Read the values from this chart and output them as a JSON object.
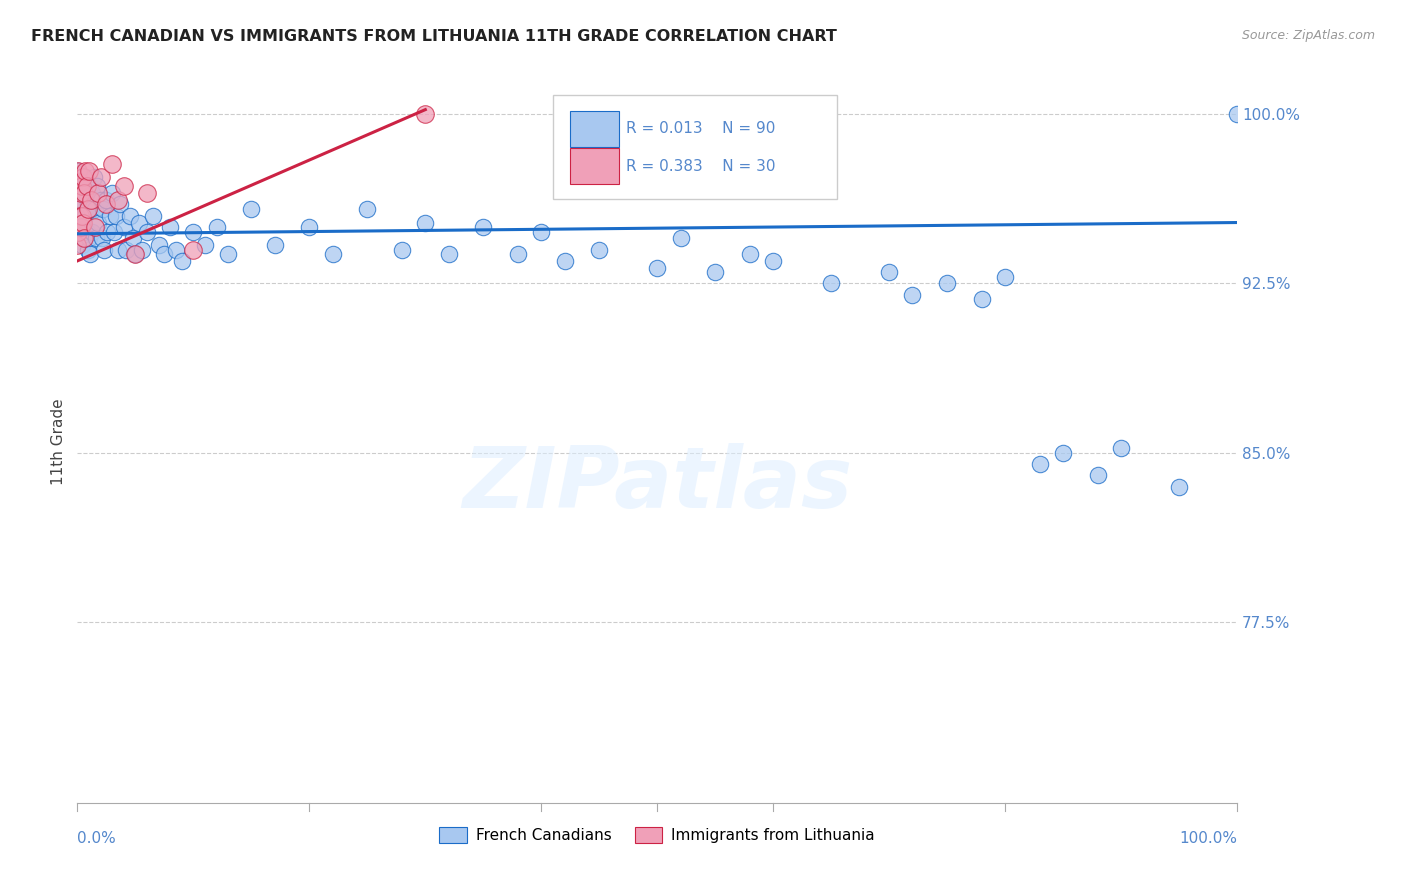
{
  "title": "FRENCH CANADIAN VS IMMIGRANTS FROM LITHUANIA 11TH GRADE CORRELATION CHART",
  "source": "Source: ZipAtlas.com",
  "ylabel": "11th Grade",
  "watermark": "ZIPatlas",
  "xlim": [
    0.0,
    1.0
  ],
  "ylim": [
    0.695,
    1.015
  ],
  "ytick_values": [
    0.775,
    0.85,
    0.925,
    1.0
  ],
  "ytick_labels": [
    "77.5%",
    "85.0%",
    "92.5%",
    "100.0%"
  ],
  "blue_color": "#a8c8f0",
  "pink_color": "#f0a0b8",
  "trend_blue_color": "#1a6cc8",
  "trend_pink_color": "#cc2244",
  "title_color": "#222222",
  "axis_label_color": "#5588cc",
  "grid_color": "#cccccc",
  "legend_r_blue": "R = 0.013",
  "legend_n_blue": "N = 90",
  "legend_r_pink": "R = 0.383",
  "legend_n_pink": "N = 30",
  "blue_trend_x": [
    0.0,
    1.0
  ],
  "blue_trend_y": [
    0.947,
    0.952
  ],
  "pink_trend_x": [
    0.0,
    0.3
  ],
  "pink_trend_y": [
    0.935,
    1.002
  ],
  "blue_x": [
    0.001,
    0.001,
    0.002,
    0.002,
    0.003,
    0.003,
    0.004,
    0.004,
    0.005,
    0.005,
    0.006,
    0.006,
    0.007,
    0.007,
    0.008,
    0.008,
    0.009,
    0.009,
    0.01,
    0.01,
    0.011,
    0.011,
    0.012,
    0.013,
    0.013,
    0.014,
    0.015,
    0.016,
    0.017,
    0.018,
    0.02,
    0.021,
    0.022,
    0.023,
    0.025,
    0.026,
    0.028,
    0.03,
    0.032,
    0.033,
    0.035,
    0.037,
    0.04,
    0.042,
    0.045,
    0.048,
    0.05,
    0.053,
    0.056,
    0.06,
    0.065,
    0.07,
    0.075,
    0.08,
    0.085,
    0.09,
    0.1,
    0.11,
    0.12,
    0.13,
    0.15,
    0.17,
    0.2,
    0.22,
    0.25,
    0.28,
    0.3,
    0.32,
    0.35,
    0.38,
    0.4,
    0.42,
    0.45,
    0.5,
    0.52,
    0.55,
    0.58,
    0.6,
    0.65,
    0.7,
    0.72,
    0.75,
    0.78,
    0.8,
    0.83,
    0.85,
    0.88,
    0.9,
    0.95,
    1.0
  ],
  "blue_y": [
    0.975,
    0.96,
    0.968,
    0.952,
    0.965,
    0.948,
    0.972,
    0.942,
    0.968,
    0.955,
    0.96,
    0.945,
    0.972,
    0.955,
    0.965,
    0.948,
    0.96,
    0.94,
    0.958,
    0.945,
    0.968,
    0.938,
    0.958,
    0.965,
    0.948,
    0.972,
    0.958,
    0.945,
    0.968,
    0.952,
    0.962,
    0.945,
    0.958,
    0.94,
    0.962,
    0.948,
    0.955,
    0.965,
    0.948,
    0.955,
    0.94,
    0.96,
    0.95,
    0.94,
    0.955,
    0.945,
    0.938,
    0.952,
    0.94,
    0.948,
    0.955,
    0.942,
    0.938,
    0.95,
    0.94,
    0.935,
    0.948,
    0.942,
    0.95,
    0.938,
    0.958,
    0.942,
    0.95,
    0.938,
    0.958,
    0.94,
    0.952,
    0.938,
    0.95,
    0.938,
    0.948,
    0.935,
    0.94,
    0.932,
    0.945,
    0.93,
    0.938,
    0.935,
    0.925,
    0.93,
    0.92,
    0.925,
    0.918,
    0.928,
    0.845,
    0.85,
    0.84,
    0.852,
    0.835,
    1.0
  ],
  "pink_x": [
    0.0,
    0.001,
    0.001,
    0.001,
    0.002,
    0.002,
    0.003,
    0.003,
    0.004,
    0.004,
    0.005,
    0.005,
    0.006,
    0.006,
    0.007,
    0.008,
    0.009,
    0.01,
    0.012,
    0.015,
    0.018,
    0.02,
    0.025,
    0.03,
    0.035,
    0.04,
    0.05,
    0.06,
    0.1,
    0.3
  ],
  "pink_y": [
    0.942,
    0.975,
    0.962,
    0.948,
    0.97,
    0.955,
    0.965,
    0.95,
    0.968,
    0.955,
    0.972,
    0.952,
    0.965,
    0.945,
    0.975,
    0.968,
    0.958,
    0.975,
    0.962,
    0.95,
    0.965,
    0.972,
    0.96,
    0.978,
    0.962,
    0.968,
    0.938,
    0.965,
    0.94,
    1.0
  ]
}
